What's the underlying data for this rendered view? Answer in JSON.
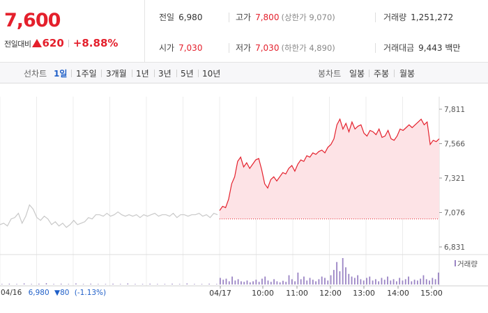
{
  "price": {
    "current": "7,600",
    "change_label": "전일대비",
    "change_amount": "620",
    "change_rate": "+8.88%"
  },
  "stats": {
    "prev_close_label": "전일",
    "prev_close": "6,980",
    "high_label": "고가",
    "high": "7,800",
    "upper_limit": "(상한가 9,070)",
    "volume_label": "거래량",
    "volume": "1,251,272",
    "open_label": "시가",
    "open": "7,030",
    "low_label": "저가",
    "low": "7,030",
    "lower_limit": "(하한가 4,890)",
    "amount_label": "거래대금",
    "amount": "9,443 백만"
  },
  "line_tabs": {
    "label": "선차트",
    "items": [
      "1일",
      "1주일",
      "3개월",
      "1년",
      "3년",
      "5년",
      "10년"
    ],
    "active": 0
  },
  "candle_tabs": {
    "label": "봉차트",
    "items": [
      "일봉",
      "주봉",
      "월봉"
    ]
  },
  "prev_day": {
    "date": "04/16",
    "close": "6,980",
    "change": "▼80",
    "rate": "(-1.13%)"
  },
  "volume_legend": "거래량",
  "colors": {
    "up": "#e4202c",
    "down": "#1f5fc8",
    "area": "#fde3e6",
    "volume": "#9a84c4",
    "prev_line": "#c8c8c8"
  },
  "chart_data": {
    "type": "line",
    "ylim": [
      6831,
      7811
    ],
    "yticks": [
      "7,811",
      "7,566",
      "7,321",
      "7,076",
      "6,831"
    ],
    "xticks": [
      "04/17",
      "10:00",
      "11:00",
      "12:00",
      "13:00",
      "14:00",
      "15:00"
    ],
    "xlabel_prev": "04/16",
    "baseline": 7030,
    "prev_series": [
      6990,
      7000,
      6980,
      7030,
      7040,
      7070,
      7000,
      7050,
      7130,
      7100,
      7040,
      7020,
      7050,
      7030,
      6990,
      7010,
      6980,
      7000,
      6970,
      6990,
      7020,
      6990,
      7000,
      7010,
      7040,
      7030,
      7060,
      7060,
      7050,
      7070,
      7050,
      7060,
      7080,
      7060,
      7050,
      7060,
      7050,
      7060,
      7040,
      7060,
      7050,
      7060,
      7070,
      7050,
      7060,
      7060,
      7050,
      7070,
      7040,
      7060,
      7060,
      7050,
      7060,
      7060,
      7070,
      7050,
      7060,
      7040,
      7070,
      7060
    ],
    "today_series": [
      7090,
      7120,
      7110,
      7170,
      7280,
      7330,
      7440,
      7470,
      7400,
      7430,
      7390,
      7420,
      7450,
      7460,
      7380,
      7280,
      7250,
      7310,
      7330,
      7300,
      7330,
      7360,
      7350,
      7390,
      7410,
      7370,
      7420,
      7450,
      7440,
      7480,
      7470,
      7500,
      7490,
      7510,
      7520,
      7500,
      7540,
      7560,
      7600,
      7700,
      7740,
      7670,
      7710,
      7650,
      7720,
      7670,
      7690,
      7700,
      7640,
      7620,
      7660,
      7650,
      7630,
      7670,
      7610,
      7620,
      7660,
      7600,
      7590,
      7620,
      7670,
      7660,
      7680,
      7700,
      7680,
      7700,
      7720,
      7740,
      7700,
      7720,
      7560,
      7590,
      7580,
      7600
    ],
    "prev_volume": [
      0.02,
      0.03,
      0.02,
      0.04,
      0.02,
      0.03,
      0.05,
      0.02,
      0.03,
      0.02,
      0.04,
      0.02,
      0.03,
      0.02,
      0.02,
      0.03,
      0.02,
      0.04,
      0.02,
      0.02,
      0.03,
      0.02,
      0.02,
      0.03,
      0.02,
      0.04,
      0.02,
      0.02,
      0.03,
      0.02
    ],
    "today_volume": [
      0.25,
      0.18,
      0.22,
      0.12,
      0.3,
      0.15,
      0.2,
      0.12,
      0.1,
      0.15,
      0.08,
      0.12,
      0.18,
      0.1,
      0.22,
      0.3,
      0.15,
      0.1,
      0.2,
      0.12,
      0.08,
      0.14,
      0.1,
      0.35,
      0.2,
      0.12,
      0.45,
      0.2,
      0.3,
      0.15,
      0.25,
      0.18,
      0.12,
      0.2,
      0.3,
      0.25,
      0.15,
      0.35,
      0.55,
      0.85,
      0.5,
      1.0,
      0.65,
      0.4,
      0.3,
      0.25,
      0.35,
      0.2,
      0.15,
      0.25,
      0.3,
      0.15,
      0.2,
      0.12,
      0.25,
      0.18,
      0.3,
      0.15,
      0.2,
      0.12,
      0.25,
      0.15,
      0.2,
      0.3,
      0.12,
      0.18,
      0.15,
      0.22,
      0.35,
      0.2,
      0.15,
      0.25,
      0.2,
      0.45
    ]
  }
}
